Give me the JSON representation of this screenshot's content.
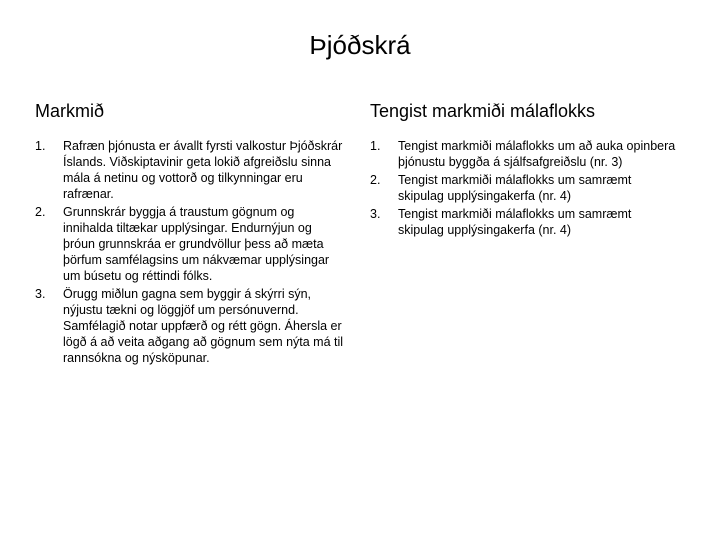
{
  "title": "Þjóðskrá",
  "left": {
    "heading": "Markmið",
    "items": [
      {
        "num": "1.",
        "text": "Rafræn þjónusta er ávallt fyrsti valkostur Þjóðskrár Íslands. Viðskiptavinir geta lokið afgreiðslu sinna mála á netinu og vottorð og tilkynningar eru rafrænar."
      },
      {
        "num": "2.",
        "text": "Grunnskrár byggja á traustum gögnum og innihalda tiltækar upplýsingar. Endurnýjun og þróun grunnskráa er grundvöllur þess að mæta þörfum samfélagsins um nákvæmar upplýsingar um búsetu og réttindi fólks."
      },
      {
        "num": "3.",
        "text": "Örugg miðlun gagna sem byggir á skýrri sýn, nýjustu tækni og löggjöf um persónuvernd. Samfélagið notar uppfærð og rétt gögn. Áhersla er lögð á að veita aðgang að gögnum sem nýta má til rannsókna og nýsköpunar."
      }
    ]
  },
  "right": {
    "heading": "Tengist markmiði málaflokks",
    "items": [
      {
        "num": "1.",
        "text": "Tengist markmiði málaflokks um að auka opinbera þjónustu byggða á sjálfsafgreiðslu (nr. 3)"
      },
      {
        "num": "2.",
        "text": "Tengist markmiði málaflokks um samræmt skipulag upplýsingakerfa (nr. 4)"
      },
      {
        "num": "3.",
        "text": "Tengist markmiði málaflokks um samræmt skipulag upplýsingakerfa (nr. 4)"
      }
    ]
  }
}
